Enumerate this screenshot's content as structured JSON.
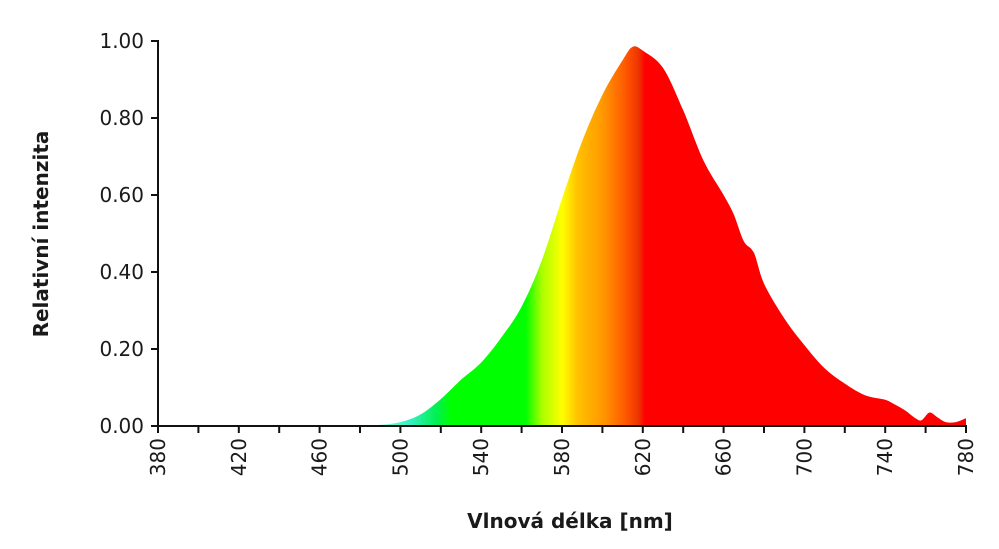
{
  "chart_data": {
    "type": "area",
    "title": "",
    "xlabel": "Vlnová délka [nm]",
    "ylabel": "Relativní intenzita",
    "xlim": [
      380,
      780
    ],
    "ylim": [
      0,
      1
    ],
    "grid": false,
    "legend": "none",
    "x_ticks": [
      380,
      420,
      460,
      500,
      540,
      580,
      620,
      660,
      700,
      740,
      780
    ],
    "x_tick_labels": [
      "380",
      "420",
      "460",
      "500",
      "540",
      "580",
      "620",
      "660",
      "700",
      "740",
      "780"
    ],
    "x_minor_step": 20,
    "y_ticks": [
      0,
      0.2,
      0.4,
      0.6,
      0.8,
      1.0
    ],
    "y_tick_labels": [
      "0.00",
      "0.20",
      "0.40",
      "0.60",
      "0.80",
      "1.00"
    ],
    "fill": "spectral gradient by wavelength",
    "color_stops": [
      {
        "nm": 490,
        "color": "#7fffe0"
      },
      {
        "nm": 505,
        "color": "#33f0c0"
      },
      {
        "nm": 518,
        "color": "#00f050"
      },
      {
        "nm": 525,
        "color": "#00ff00"
      },
      {
        "nm": 562,
        "color": "#00ff00"
      },
      {
        "nm": 570,
        "color": "#aaff00"
      },
      {
        "nm": 580,
        "color": "#ffff00"
      },
      {
        "nm": 588,
        "color": "#ffc000"
      },
      {
        "nm": 600,
        "color": "#ff9900"
      },
      {
        "nm": 612,
        "color": "#ff5500"
      },
      {
        "nm": 618,
        "color": "#ee3300"
      },
      {
        "nm": 621,
        "color": "#ff0000"
      },
      {
        "nm": 780,
        "color": "#ff0000"
      }
    ],
    "x": [
      380,
      480,
      490,
      500,
      510,
      520,
      530,
      540,
      550,
      560,
      570,
      580,
      590,
      600,
      610,
      615,
      620,
      630,
      640,
      650,
      660,
      665,
      670,
      675,
      680,
      690,
      700,
      710,
      720,
      730,
      740,
      745,
      750,
      755,
      758,
      762,
      766,
      770,
      775,
      780
    ],
    "values": [
      0,
      0,
      0.003,
      0.01,
      0.03,
      0.07,
      0.12,
      0.165,
      0.23,
      0.31,
      0.43,
      0.59,
      0.74,
      0.86,
      0.95,
      0.985,
      0.975,
      0.93,
      0.82,
      0.69,
      0.6,
      0.55,
      0.48,
      0.45,
      0.37,
      0.28,
      0.21,
      0.15,
      0.11,
      0.08,
      0.068,
      0.055,
      0.04,
      0.02,
      0.015,
      0.035,
      0.022,
      0.01,
      0.01,
      0.02
    ]
  }
}
